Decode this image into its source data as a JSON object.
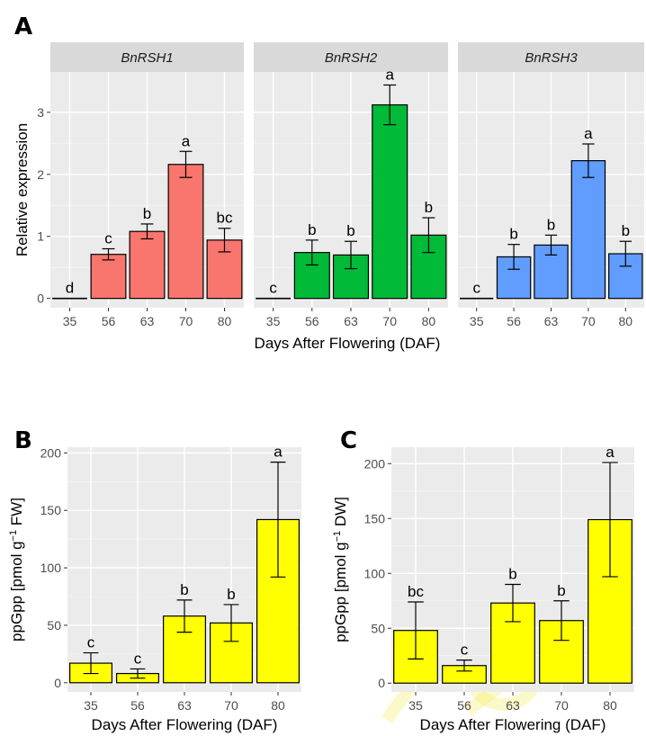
{
  "panels": {
    "A": {
      "label": "A"
    },
    "B": {
      "label": "B"
    },
    "C": {
      "label": "C"
    }
  },
  "colors": {
    "panel_bg": "#ebebeb",
    "grid_major": "#ffffff",
    "strip_bg": "#d9d9d9",
    "BnRSH1": "#f8766d",
    "BnRSH2": "#00ba38",
    "BnRSH3": "#619cff",
    "ppgpp_fill": "#ffff00"
  },
  "chart_data": [
    {
      "id": "A",
      "type": "bar",
      "facets": [
        "BnRSH1",
        "BnRSH2",
        "BnRSH3"
      ],
      "categories": [
        "35",
        "56",
        "63",
        "70",
        "80"
      ],
      "series": [
        {
          "name": "BnRSH1",
          "values": [
            0.0,
            0.71,
            1.08,
            2.16,
            0.94
          ],
          "errors": [
            0.0,
            0.09,
            0.12,
            0.21,
            0.19
          ],
          "letters": [
            "d",
            "c",
            "b",
            "a",
            "bc"
          ]
        },
        {
          "name": "BnRSH2",
          "values": [
            0.0,
            0.74,
            0.7,
            3.12,
            1.02
          ],
          "errors": [
            0.0,
            0.2,
            0.22,
            0.32,
            0.28
          ],
          "letters": [
            "c",
            "b",
            "b",
            "a",
            "b"
          ]
        },
        {
          "name": "BnRSH3",
          "values": [
            0.0,
            0.67,
            0.86,
            2.22,
            0.72
          ],
          "errors": [
            0.0,
            0.2,
            0.16,
            0.27,
            0.2
          ],
          "letters": [
            "c",
            "b",
            "b",
            "a",
            "b"
          ]
        }
      ],
      "ylim": [
        -0.15,
        3.65
      ],
      "yticks": [
        "0",
        "1",
        "2",
        "3"
      ],
      "ylabel": "Relative expression",
      "xlabel": "Days After Flowering (DAF)",
      "grid": true
    },
    {
      "id": "B",
      "type": "bar",
      "categories": [
        "35",
        "56",
        "63",
        "70",
        "80"
      ],
      "values": [
        17,
        8,
        58,
        52,
        142
      ],
      "errors": [
        9,
        4,
        14,
        16,
        50
      ],
      "letters": [
        "c",
        "c",
        "b",
        "b",
        "a"
      ],
      "ylim": [
        -8,
        205
      ],
      "yticks": [
        "0",
        "50",
        "100",
        "150",
        "200"
      ],
      "ylabel_parts": [
        "ppGpp [pmol g",
        "−1",
        " FW]"
      ],
      "xlabel": "Days After Flowering (DAF)",
      "grid": true
    },
    {
      "id": "C",
      "type": "bar",
      "categories": [
        "35",
        "56",
        "63",
        "70",
        "80"
      ],
      "values": [
        48,
        16,
        73,
        57,
        149
      ],
      "errors": [
        26,
        5,
        17,
        18,
        52
      ],
      "letters": [
        "bc",
        "c",
        "b",
        "b",
        "a"
      ],
      "ylim": [
        -8,
        215
      ],
      "yticks": [
        "0",
        "50",
        "100",
        "150",
        "200"
      ],
      "ylabel_parts": [
        "ppGpp [pmol g",
        "−1",
        " DW]"
      ],
      "xlabel": "Days After Flowering (DAF)",
      "grid": true
    }
  ]
}
